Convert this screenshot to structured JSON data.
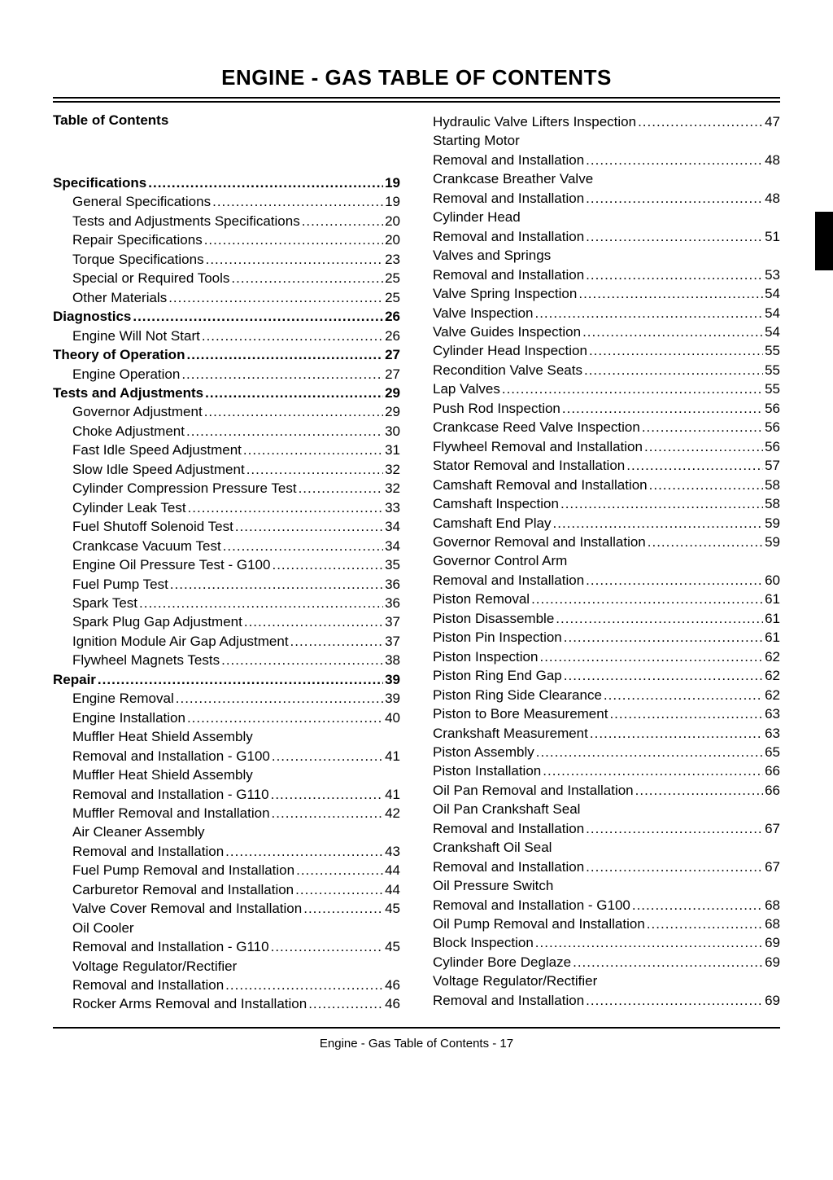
{
  "title": "ENGINE - GAS   TABLE OF CONTENTS",
  "subtitle": "Table of Contents",
  "footer": "Engine - Gas   Table of Contents  - 17",
  "left_column": [
    {
      "type": "section",
      "label": "Specifications",
      "page": "19"
    },
    {
      "type": "sub",
      "label": "General Specifications",
      "page": "19"
    },
    {
      "type": "sub",
      "label": "Tests and Adjustments Specifications",
      "page": "20"
    },
    {
      "type": "sub",
      "label": "Repair Specifications",
      "page": "20"
    },
    {
      "type": "sub",
      "label": "Torque Specifications",
      "page": "23"
    },
    {
      "type": "sub",
      "label": "Special or Required Tools",
      "page": "25"
    },
    {
      "type": "sub",
      "label": "Other Materials",
      "page": "25"
    },
    {
      "type": "section",
      "label": "Diagnostics",
      "page": "26"
    },
    {
      "type": "sub",
      "label": "Engine Will Not Start",
      "page": "26"
    },
    {
      "type": "section",
      "label": "Theory of Operation",
      "page": "27"
    },
    {
      "type": "sub",
      "label": "Engine Operation",
      "page": "27"
    },
    {
      "type": "section",
      "label": "Tests and Adjustments",
      "page": "29"
    },
    {
      "type": "sub",
      "label": "Governor Adjustment",
      "page": "29"
    },
    {
      "type": "sub",
      "label": "Choke Adjustment",
      "page": "30"
    },
    {
      "type": "sub",
      "label": "Fast Idle Speed Adjustment",
      "page": "31"
    },
    {
      "type": "sub",
      "label": "Slow Idle Speed Adjustment",
      "page": "32"
    },
    {
      "type": "sub",
      "label": "Cylinder Compression Pressure Test",
      "page": "32"
    },
    {
      "type": "sub",
      "label": "Cylinder Leak Test",
      "page": "33"
    },
    {
      "type": "sub",
      "label": "Fuel Shutoff Solenoid Test",
      "page": "34"
    },
    {
      "type": "sub",
      "label": "Crankcase Vacuum Test",
      "page": "34"
    },
    {
      "type": "sub",
      "label": "Engine Oil Pressure Test - G100",
      "page": "35"
    },
    {
      "type": "sub",
      "label": "Fuel Pump Test",
      "page": "36"
    },
    {
      "type": "sub",
      "label": "Spark Test",
      "page": "36"
    },
    {
      "type": "sub",
      "label": "Spark Plug Gap Adjustment",
      "page": "37"
    },
    {
      "type": "sub",
      "label": "Ignition Module Air Gap Adjustment",
      "page": "37"
    },
    {
      "type": "sub",
      "label": "Flywheel Magnets Tests",
      "page": "38"
    },
    {
      "type": "section",
      "label": "Repair",
      "page": "39"
    },
    {
      "type": "sub",
      "label": "Engine Removal",
      "page": "39"
    },
    {
      "type": "sub",
      "label": "Engine Installation",
      "page": "40"
    },
    {
      "type": "header",
      "label": "Muffler Heat Shield Assembly"
    },
    {
      "type": "sub",
      "label": "Removal and Installation - G100",
      "page": "41"
    },
    {
      "type": "header",
      "label": "Muffler Heat Shield Assembly"
    },
    {
      "type": "sub",
      "label": "Removal and Installation - G110",
      "page": "41"
    },
    {
      "type": "sub",
      "label": "Muffler Removal and Installation",
      "page": "42"
    },
    {
      "type": "header",
      "label": "Air Cleaner Assembly"
    },
    {
      "type": "sub",
      "label": "Removal and Installation",
      "page": "43"
    },
    {
      "type": "sub",
      "label": "Fuel Pump Removal and Installation",
      "page": "44"
    },
    {
      "type": "sub",
      "label": "Carburetor Removal and Installation",
      "page": "44"
    },
    {
      "type": "sub",
      "label": "Valve Cover Removal and Installation",
      "page": "45"
    },
    {
      "type": "header",
      "label": "Oil Cooler"
    },
    {
      "type": "sub",
      "label": "Removal and Installation - G110",
      "page": "45"
    },
    {
      "type": "header",
      "label": "Voltage Regulator/Rectifier"
    },
    {
      "type": "sub",
      "label": "Removal and Installation",
      "page": "46"
    },
    {
      "type": "sub",
      "label": "Rocker Arms Removal and Installation",
      "page": "46"
    }
  ],
  "right_column": [
    {
      "type": "sub",
      "label": "Hydraulic Valve Lifters Inspection",
      "page": "47"
    },
    {
      "type": "header2",
      "label": "Starting Motor"
    },
    {
      "type": "sub",
      "label": "Removal and Installation",
      "page": "48"
    },
    {
      "type": "header2",
      "label": "Crankcase Breather Valve"
    },
    {
      "type": "sub",
      "label": "Removal and Installation",
      "page": "48"
    },
    {
      "type": "header2",
      "label": "Cylinder Head"
    },
    {
      "type": "sub",
      "label": "Removal and Installation",
      "page": "51"
    },
    {
      "type": "header2",
      "label": "Valves and Springs"
    },
    {
      "type": "sub",
      "label": "Removal and Installation",
      "page": "53"
    },
    {
      "type": "sub",
      "label": "Valve Spring Inspection",
      "page": "54"
    },
    {
      "type": "sub",
      "label": "Valve Inspection",
      "page": "54"
    },
    {
      "type": "sub",
      "label": "Valve Guides Inspection",
      "page": "54"
    },
    {
      "type": "sub",
      "label": "Cylinder Head Inspection",
      "page": "55"
    },
    {
      "type": "sub",
      "label": "Recondition Valve Seats",
      "page": "55"
    },
    {
      "type": "sub",
      "label": "Lap Valves",
      "page": "55"
    },
    {
      "type": "sub",
      "label": "Push Rod Inspection",
      "page": "56"
    },
    {
      "type": "sub",
      "label": "Crankcase Reed Valve Inspection",
      "page": "56"
    },
    {
      "type": "sub",
      "label": "Flywheel Removal and Installation",
      "page": "56"
    },
    {
      "type": "sub",
      "label": "Stator Removal and Installation",
      "page": "57"
    },
    {
      "type": "sub",
      "label": "Camshaft Removal and Installation",
      "page": "58"
    },
    {
      "type": "sub",
      "label": "Camshaft Inspection",
      "page": "58"
    },
    {
      "type": "sub",
      "label": "Camshaft End Play",
      "page": "59"
    },
    {
      "type": "sub",
      "label": "Governor Removal and Installation",
      "page": "59"
    },
    {
      "type": "header2",
      "label": "Governor Control Arm"
    },
    {
      "type": "sub",
      "label": "Removal and Installation",
      "page": "60"
    },
    {
      "type": "sub",
      "label": "Piston Removal",
      "page": "61"
    },
    {
      "type": "sub",
      "label": "Piston Disassemble",
      "page": "61"
    },
    {
      "type": "sub",
      "label": "Piston Pin Inspection",
      "page": "61"
    },
    {
      "type": "sub",
      "label": "Piston Inspection",
      "page": "62"
    },
    {
      "type": "sub",
      "label": "Piston Ring End Gap",
      "page": "62"
    },
    {
      "type": "sub",
      "label": "Piston Ring Side Clearance",
      "page": "62"
    },
    {
      "type": "sub",
      "label": "Piston to Bore Measurement",
      "page": "63"
    },
    {
      "type": "sub",
      "label": "Crankshaft Measurement",
      "page": "63"
    },
    {
      "type": "sub",
      "label": "Piston Assembly",
      "page": "65"
    },
    {
      "type": "sub",
      "label": "Piston Installation",
      "page": "66"
    },
    {
      "type": "sub",
      "label": "Oil Pan Removal and Installation",
      "page": "66"
    },
    {
      "type": "header2",
      "label": "Oil Pan Crankshaft Seal"
    },
    {
      "type": "sub",
      "label": "Removal and Installation",
      "page": "67"
    },
    {
      "type": "header2",
      "label": "Crankshaft Oil Seal"
    },
    {
      "type": "sub",
      "label": "Removal and Installation",
      "page": "67"
    },
    {
      "type": "header2",
      "label": "Oil Pressure Switch"
    },
    {
      "type": "sub",
      "label": "Removal and Installation - G100",
      "page": "68"
    },
    {
      "type": "sub",
      "label": "Oil Pump Removal and Installation",
      "page": "68"
    },
    {
      "type": "sub",
      "label": "Block Inspection",
      "page": "69"
    },
    {
      "type": "sub",
      "label": "Cylinder Bore Deglaze",
      "page": "69"
    },
    {
      "type": "header2",
      "label": "Voltage Regulator/Rectifier"
    },
    {
      "type": "sub",
      "label": "Removal and Installation",
      "page": "69"
    }
  ]
}
